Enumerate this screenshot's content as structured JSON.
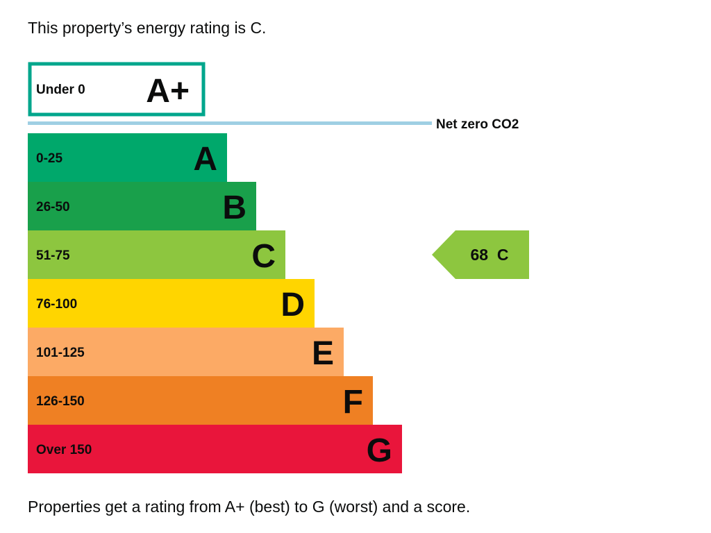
{
  "intro_text": "This property’s energy rating is C.",
  "footer_text": "Properties get a rating from A+ (best) to G (worst) and a score.",
  "chart_data": {
    "type": "bar",
    "title": "",
    "aplus_band": {
      "letter": "A+",
      "range_label": "Under 0",
      "border_color": "#00a68c"
    },
    "net_zero_label": "Net zero CO2",
    "net_zero_line_color": "#9fcfe3",
    "bands": [
      {
        "letter": "A",
        "range_label": "0-25",
        "color": "#00a86b",
        "text_color": "#0b0c0c"
      },
      {
        "letter": "B",
        "range_label": "26-50",
        "color": "#19a04b",
        "text_color": "#0b0c0c"
      },
      {
        "letter": "C",
        "range_label": "51-75",
        "color": "#8dc63f",
        "text_color": "#0b0c0c"
      },
      {
        "letter": "D",
        "range_label": "76-100",
        "color": "#ffd500",
        "text_color": "#0b0c0c"
      },
      {
        "letter": "E",
        "range_label": "101-125",
        "color": "#fcaa65",
        "text_color": "#0b0c0c"
      },
      {
        "letter": "F",
        "range_label": "126-150",
        "color": "#ef8023",
        "text_color": "#0b0c0c"
      },
      {
        "letter": "G",
        "range_label": "Over 150",
        "color": "#e9153b",
        "text_color": "#0b0c0c"
      }
    ],
    "current_rating": {
      "score": 68,
      "letter": "C",
      "label": "68  C",
      "color": "#8dc63f"
    }
  }
}
